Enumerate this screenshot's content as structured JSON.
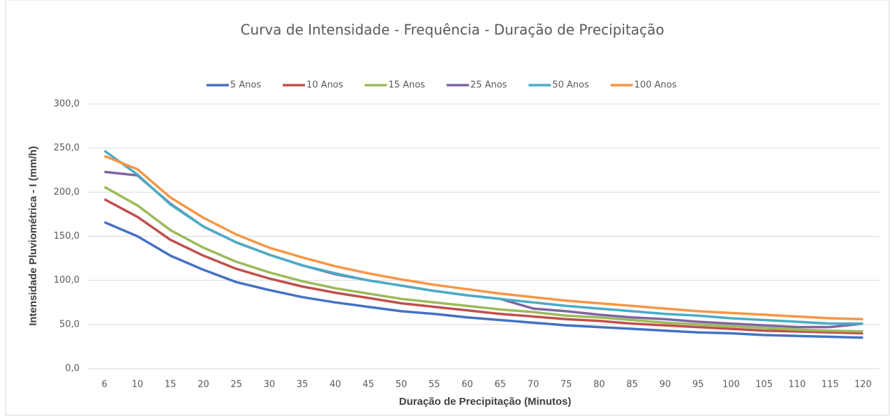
{
  "chart_data": {
    "type": "line",
    "title": "Curva de Intensidade - Frequência - Duração de Precipitação",
    "x_label": "Duração de Precipitação (Minutos)",
    "y_label": "Intensidade Pluviométrica - I (mm/h)",
    "categories": [
      6,
      10,
      15,
      20,
      25,
      30,
      35,
      40,
      45,
      50,
      55,
      60,
      65,
      70,
      75,
      80,
      85,
      90,
      95,
      100,
      105,
      110,
      115,
      120
    ],
    "series": [
      {
        "name": "5 Anos",
        "color": "#4472c4",
        "values": [
          166,
          150,
          128,
          112,
          98,
          89,
          81,
          75,
          70,
          65,
          62,
          58,
          55,
          52,
          49,
          47,
          45,
          43,
          41,
          40,
          38,
          37,
          36,
          35
        ]
      },
      {
        "name": "10 Anos",
        "color": "#c0504d",
        "values": [
          192,
          172,
          146,
          128,
          113,
          102,
          93,
          86,
          80,
          74,
          70,
          66,
          62,
          59,
          56,
          54,
          51,
          49,
          47,
          45,
          43,
          42,
          41,
          40
        ]
      },
      {
        "name": "15 Anos",
        "color": "#9bbb59",
        "values": [
          206,
          185,
          157,
          137,
          121,
          109,
          99,
          91,
          85,
          79,
          75,
          71,
          67,
          64,
          60,
          58,
          55,
          52,
          50,
          48,
          46,
          44,
          43,
          42
        ]
      },
      {
        "name": "25 Anos",
        "color": "#8064a2",
        "values": [
          223,
          219,
          187,
          161,
          143,
          129,
          117,
          107,
          100,
          94,
          88,
          83,
          79,
          68,
          65,
          61,
          58,
          56,
          53,
          51,
          49,
          47,
          47,
          51
        ]
      },
      {
        "name": "50 Anos",
        "color": "#4bacc6",
        "values": [
          247,
          220,
          186,
          161,
          143,
          129,
          117,
          108,
          100,
          94,
          88,
          83,
          79,
          75,
          71,
          68,
          65,
          62,
          60,
          57,
          55,
          53,
          51,
          51
        ]
      },
      {
        "name": "100 Anos",
        "color": "#f79646",
        "values": [
          241,
          226,
          194,
          171,
          152,
          137,
          126,
          116,
          108,
          101,
          95,
          90,
          85,
          81,
          77,
          74,
          71,
          68,
          65,
          63,
          61,
          59,
          57,
          56
        ]
      }
    ],
    "ylim": [
      0,
      300
    ],
    "yticks": [
      {
        "value": 0,
        "label": "0,0"
      },
      {
        "value": 50,
        "label": "50,0"
      },
      {
        "value": 100,
        "label": "100,0"
      },
      {
        "value": 150,
        "label": "150,0"
      },
      {
        "value": 200,
        "label": "200,0"
      },
      {
        "value": 250,
        "label": "250,0"
      },
      {
        "value": 300,
        "label": "300,0"
      }
    ],
    "grid": true,
    "legend": "top"
  }
}
